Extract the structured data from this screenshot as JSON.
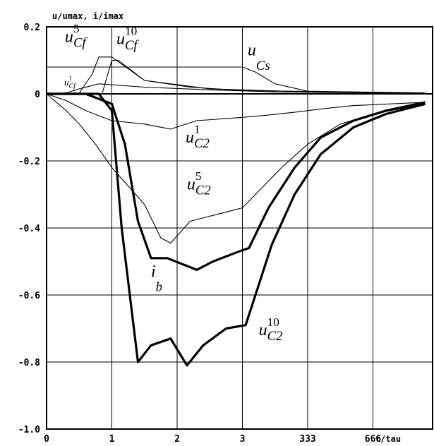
{
  "chart_data": {
    "type": "line",
    "title": "",
    "ylabel": "u/umax, i/imax",
    "xlabel": "t/tau",
    "ylim": [
      -1.0,
      0.2
    ],
    "grid": true,
    "y_ticks": [
      {
        "value": 0.2,
        "label": "0.2"
      },
      {
        "value": 0.0,
        "label": "0"
      },
      {
        "value": -0.2,
        "label": "-0.2"
      },
      {
        "value": -0.4,
        "label": "-0.4"
      },
      {
        "value": -0.6,
        "label": "-0.6"
      },
      {
        "value": -0.8,
        "label": "-0.8"
      },
      {
        "value": -1.0,
        "label": "-1.0"
      }
    ],
    "x_ticks": [
      {
        "value": 0,
        "label": "0"
      },
      {
        "value": 1,
        "label": "1"
      },
      {
        "value": 2,
        "label": "2"
      },
      {
        "value": 3,
        "label": "3"
      },
      {
        "value": 4,
        "label": "333"
      },
      {
        "value": 5,
        "label": "666"
      }
    ],
    "series": [
      {
        "name": "u_Cs",
        "base": "u",
        "sub": "Cs",
        "sup": "",
        "weight": "thin",
        "x": [
          0,
          3.0,
          3.2,
          3.5,
          4.0,
          5.8
        ],
        "y": [
          0.08,
          0.08,
          0.065,
          0.03,
          0.008,
          0.002
        ]
      },
      {
        "name": "u_Cf^5",
        "base": "u",
        "sub": "Cf",
        "sup": "5",
        "weight": "thin",
        "x": [
          0,
          0.5,
          0.7,
          0.8,
          1.0,
          1.5,
          2.2,
          3.0,
          5.8
        ],
        "y": [
          0.0,
          0.002,
          0.06,
          0.11,
          0.11,
          0.04,
          0.02,
          0.01,
          0.003
        ]
      },
      {
        "name": "u_Cf^10",
        "base": "u",
        "sub": "Cf",
        "sup": "10",
        "weight": "thin",
        "x": [
          0,
          0.85,
          1.0,
          1.1,
          1.5,
          2.5,
          4.0,
          5.8
        ],
        "y": [
          0.0,
          0.0,
          0.1,
          0.1,
          0.04,
          0.015,
          0.006,
          0.002
        ]
      },
      {
        "name": "u_Cf^1",
        "base": "u",
        "sub": "Cf",
        "sup": "1",
        "weight": "thin",
        "x": [
          0,
          0.3,
          0.5,
          0.8,
          1.5,
          2.5,
          3.5,
          5.8
        ],
        "y": [
          0.0,
          0.003,
          0.015,
          0.03,
          0.02,
          0.012,
          0.006,
          0.001
        ]
      },
      {
        "name": "u_C2^1",
        "base": "u",
        "sub": "C2",
        "sup": "1",
        "weight": "thin",
        "x": [
          0,
          0.3,
          0.6,
          1.0,
          1.5,
          1.9,
          2.3,
          3.0,
          3.3,
          3.8,
          4.2,
          4.7,
          5.8
        ],
        "y": [
          0.0,
          -0.02,
          -0.05,
          -0.08,
          -0.09,
          -0.105,
          -0.08,
          -0.07,
          -0.065,
          -0.055,
          -0.045,
          -0.035,
          -0.025
        ]
      },
      {
        "name": "u_C2^5",
        "base": "u",
        "sub": "C2",
        "sup": "5",
        "weight": "thin",
        "x": [
          0,
          0.3,
          0.5,
          0.75,
          1.0,
          1.5,
          1.75,
          1.9,
          2.2,
          2.8,
          3.0,
          3.2,
          3.6,
          4.0,
          4.5,
          5.0,
          5.8
        ],
        "y": [
          0.0,
          -0.05,
          -0.09,
          -0.15,
          -0.22,
          -0.33,
          -0.43,
          -0.445,
          -0.38,
          -0.35,
          -0.34,
          -0.3,
          -0.22,
          -0.15,
          -0.09,
          -0.06,
          -0.03
        ]
      },
      {
        "name": "u_C2^10",
        "base": "u",
        "sub": "C2",
        "sup": "10",
        "weight": "thick",
        "x": [
          0,
          0.8,
          1.0,
          1.15,
          1.4,
          1.6,
          1.9,
          2.15,
          2.4,
          2.75,
          3.05,
          3.2,
          3.45,
          3.8,
          4.2,
          4.7,
          5.2,
          5.8
        ],
        "y": [
          0.0,
          0.0,
          -0.05,
          -0.4,
          -0.8,
          -0.75,
          -0.73,
          -0.81,
          -0.75,
          -0.7,
          -0.69,
          -0.6,
          -0.45,
          -0.3,
          -0.18,
          -0.1,
          -0.06,
          -0.03
        ]
      },
      {
        "name": "i_b",
        "base": "i",
        "sub": "b",
        "sup": "",
        "weight": "thick",
        "x": [
          0,
          0.6,
          1.0,
          1.2,
          1.4,
          1.6,
          1.85,
          2.3,
          2.55,
          2.95,
          3.1,
          3.4,
          3.8,
          4.2,
          4.7,
          5.2,
          5.8
        ],
        "y": [
          0.0,
          0.0,
          -0.03,
          -0.15,
          -0.38,
          -0.49,
          -0.49,
          -0.525,
          -0.5,
          -0.47,
          -0.46,
          -0.34,
          -0.22,
          -0.13,
          -0.08,
          -0.05,
          -0.025
        ]
      }
    ],
    "labels": [
      {
        "series": "u_Cf^5",
        "x": 0.28,
        "y": 0.155,
        "size": 24
      },
      {
        "series": "u_Cf^10",
        "x": 1.07,
        "y": 0.148,
        "size": 24
      },
      {
        "series": "u_Cs",
        "x": 3.08,
        "y": 0.115,
        "size": 24
      },
      {
        "series": "u_Cf^1",
        "x": 0.27,
        "y": 0.025,
        "size": 13
      },
      {
        "series": "u_C2^1",
        "x": 2.13,
        "y": -0.145,
        "size": 24
      },
      {
        "series": "u_C2^5",
        "x": 2.15,
        "y": -0.285,
        "size": 24
      },
      {
        "series": "i_b",
        "x": 1.6,
        "y": -0.545,
        "size": 24
      },
      {
        "series": "u_C2^10",
        "x": 3.25,
        "y": -0.72,
        "size": 24
      }
    ]
  }
}
